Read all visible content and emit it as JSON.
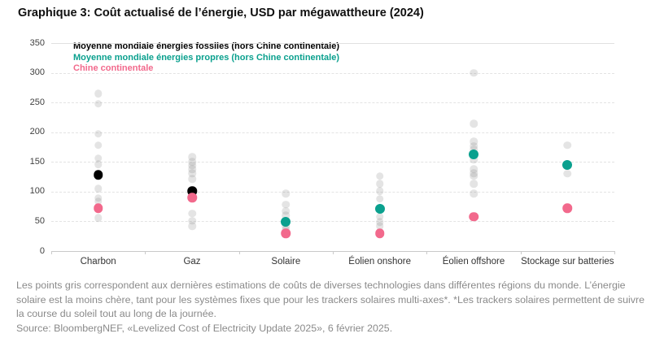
{
  "title": "Graphique 3: Coût actualisé de l’énergie, USD par mégawattheure (2024)",
  "legend": [
    {
      "label": "Moyenne mondiale énergies fossiles (hors Chine continentale)",
      "color": "#000000"
    },
    {
      "label": "Moyenne mondiale énergies propres (hors Chine continentale)",
      "color": "#0aa08e"
    },
    {
      "label": "Chine continentale",
      "color": "#f2698c"
    }
  ],
  "colors": {
    "fossil_average": "#000000",
    "clean_average": "#0aa08e",
    "china": "#f2698c",
    "regional_gray": "rgba(130,130,130,0.22)",
    "gridline": "#e3e3e3",
    "axis": "#c9c9c9",
    "footnote_text": "#8a8a8a"
  },
  "chart_data": {
    "type": "scatter",
    "title": "Graphique 3: Coût actualisé de l’énergie, USD par mégawattheure (2024)",
    "ylabel": "USD par mégawattheure",
    "ylim": [
      0,
      350
    ],
    "y_ticks": [
      0,
      50,
      100,
      150,
      200,
      250,
      300,
      350
    ],
    "grid": "horizontal-dashed",
    "legend_position": "top-left-inside",
    "categories": [
      "Charbon",
      "Gaz",
      "Solaire",
      "Éolien onshore",
      "Éolien offshore",
      "Stockage sur batteries"
    ],
    "series": [
      {
        "name": "Estimations régionales (points gris)",
        "type": "multi",
        "values_by_category": [
          [
            265,
            248,
            197,
            178,
            156,
            146,
            105,
            89,
            84,
            56
          ],
          [
            158,
            150,
            144,
            138,
            131,
            121,
            63,
            51,
            42
          ],
          [
            97,
            78,
            67,
            60,
            42,
            36
          ],
          [
            126,
            113,
            101,
            88,
            58,
            49,
            42
          ],
          [
            300,
            214,
            184,
            177,
            171,
            154,
            138,
            131,
            126,
            113,
            97
          ],
          [
            178,
            130
          ]
        ]
      },
      {
        "name": "Moyenne mondiale énergies fossiles (hors Chine continentale)",
        "type": "single",
        "values_by_category": [
          128,
          101,
          null,
          null,
          null,
          null
        ]
      },
      {
        "name": "Moyenne mondiale énergies propres (hors Chine continentale)",
        "type": "single",
        "values_by_category": [
          null,
          null,
          49,
          71,
          163,
          145
        ]
      },
      {
        "name": "Chine continentale",
        "type": "single",
        "values_by_category": [
          72,
          90,
          30,
          30,
          58,
          72
        ]
      }
    ]
  },
  "footnote": {
    "note": "Les points gris correspondent aux dernières estimations de coûts de diverses technologies dans différentes régions du monde. L’énergie solaire est la moins chère, tant pour les systèmes fixes que pour les trackers solaires multi-axes*. *Les trackers solaires permettent de suivre la course du soleil tout au long de la journée.",
    "source": "Source: BloombergNEF, «Levelized Cost of Electricity Update 2025», 6 février 2025."
  }
}
